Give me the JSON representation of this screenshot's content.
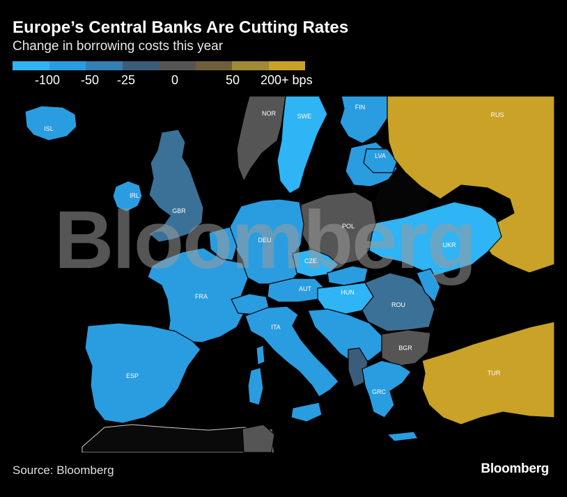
{
  "title": "Europe’s Central Banks Are Cutting Rates",
  "subtitle": "Change in borrowing costs this year",
  "legend": {
    "colors": [
      "#2fb4f5",
      "#2a9de0",
      "#347fb3",
      "#3b5d7a",
      "#555555",
      "#6e5f3c",
      "#a08a36",
      "#c9a227"
    ],
    "labels": [
      "-100",
      "-50",
      "-25",
      "0",
      "50",
      "200+ bps"
    ]
  },
  "countries": [
    {
      "code": "ISL",
      "category": "-50"
    },
    {
      "code": "IRL",
      "category": "-50"
    },
    {
      "code": "GBR",
      "category": "-25"
    },
    {
      "code": "NOR",
      "category": "0"
    },
    {
      "code": "SWE",
      "category": "-100"
    },
    {
      "code": "FIN",
      "category": "-50"
    },
    {
      "code": "LVA",
      "category": "-50"
    },
    {
      "code": "RUS",
      "category": "200+"
    },
    {
      "code": "POL",
      "category": "0"
    },
    {
      "code": "DEU",
      "category": "-50"
    },
    {
      "code": "CZE",
      "category": "-100"
    },
    {
      "code": "UKR",
      "category": "-100"
    },
    {
      "code": "FRA",
      "category": "-50"
    },
    {
      "code": "AUT",
      "category": "-50"
    },
    {
      "code": "HUN",
      "category": "-100"
    },
    {
      "code": "ROU",
      "category": "-25"
    },
    {
      "code": "ITA",
      "category": "-50"
    },
    {
      "code": "BGR",
      "category": "0"
    },
    {
      "code": "ESP",
      "category": "-50"
    },
    {
      "code": "TUR",
      "category": "200+"
    },
    {
      "code": "GRC",
      "category": "-50"
    }
  ],
  "watermark": "Bloomberg",
  "source": "Source: Bloomberg",
  "logo": "Bloomberg"
}
